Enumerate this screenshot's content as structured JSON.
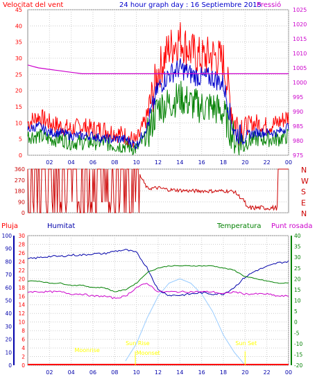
{
  "header": {
    "wind_label": "Velocitat del vent",
    "title": "24 hour graph day : 16 Septiembre 2015",
    "pressure_label": "Pressió"
  },
  "middle": {
    "labels": [
      "Pluja",
      "Humitat",
      "Temperatura",
      "Punt rosada"
    ]
  },
  "colors": {
    "wind": "#ff0000",
    "wind_avg": "#0000cc",
    "wind_min": "#008000",
    "pressure": "#cc00cc",
    "direction": "#cc0000",
    "humidity": "#0000aa",
    "temperature": "#008000",
    "dewpoint": "#cc00cc",
    "solar": "#99ccff",
    "astro": "#ffff00",
    "rain": "#ff0000"
  },
  "chart_data": [
    {
      "type": "line",
      "name": "wind",
      "x_ticks": [
        "02",
        "04",
        "06",
        "08",
        "10",
        "12",
        "14",
        "16",
        "18",
        "20",
        "22",
        "00"
      ],
      "ylim": [
        0,
        45
      ],
      "y_ticks": [
        "0",
        "5",
        "10",
        "15",
        "20",
        "25",
        "30",
        "35",
        "40",
        "45"
      ],
      "y2lim": [
        975,
        1025
      ],
      "y2_ticks": [
        "975",
        "980",
        "985",
        "990",
        "995",
        "1000",
        "1005",
        "1010",
        "1015",
        "1020",
        "1025"
      ],
      "x": [
        0,
        1,
        2,
        3,
        4,
        5,
        6,
        7,
        8,
        9,
        10,
        11,
        12,
        13,
        14,
        15,
        16,
        17,
        18,
        19,
        20,
        21,
        22,
        23,
        24
      ],
      "series": [
        {
          "key": "gust",
          "values": [
            10,
            12,
            10,
            9,
            8,
            9,
            8,
            8,
            7,
            6,
            4,
            12,
            26,
            33,
            36,
            32,
            30,
            31,
            29,
            10,
            9,
            10,
            9,
            10,
            12
          ]
        },
        {
          "key": "avg",
          "values": [
            8,
            9,
            7,
            7,
            6,
            6,
            6,
            5,
            5,
            5,
            3,
            9,
            21,
            25,
            27,
            25,
            24,
            24,
            22,
            7,
            6,
            7,
            7,
            7,
            9
          ]
        },
        {
          "key": "min",
          "values": [
            6,
            6,
            5,
            5,
            4,
            4,
            4,
            4,
            3,
            3,
            2,
            6,
            15,
            16,
            18,
            16,
            15,
            15,
            13,
            5,
            4,
            5,
            5,
            5,
            6
          ]
        },
        {
          "key": "pressure",
          "values": [
            1006,
            1005,
            1004.5,
            1004,
            1003.5,
            1003,
            1003,
            1003,
            1003,
            1003,
            1003,
            1003,
            1003,
            1003,
            1003,
            1003,
            1003,
            1003,
            1003,
            1003,
            1003,
            1003,
            1003,
            1003,
            1003
          ]
        }
      ]
    },
    {
      "type": "line",
      "name": "wind_direction",
      "y_ticks": [
        "360",
        "270",
        "180",
        "90",
        "0"
      ],
      "y2_ticks": [
        "N",
        "W",
        "S",
        "E",
        "N"
      ],
      "ylim": [
        0,
        360
      ],
      "x": [
        0,
        1,
        2,
        3,
        4,
        5,
        6,
        7,
        8,
        9,
        10,
        11,
        12,
        13,
        14,
        15,
        16,
        17,
        18,
        19,
        20,
        21,
        22,
        23,
        24
      ],
      "values": [
        90,
        360,
        0,
        90,
        360,
        0,
        360,
        90,
        360,
        0,
        360,
        200,
        205,
        190,
        185,
        180,
        180,
        178,
        180,
        175,
        90,
        20,
        20,
        360,
        360
      ]
    },
    {
      "type": "line",
      "name": "humidity_temperature",
      "x_ticks": [
        "02",
        "04",
        "06",
        "08",
        "10",
        "12",
        "14",
        "16",
        "18",
        "20",
        "22",
        "00"
      ],
      "humidity_ticks": [
        "0",
        "10",
        "20",
        "30",
        "40",
        "50",
        "60",
        "70",
        "80",
        "90",
        "100"
      ],
      "rain_ticks": [
        "0",
        "2",
        "4",
        "6",
        "8",
        "10",
        "12",
        "14",
        "16",
        "18",
        "20",
        "22",
        "24",
        "26",
        "28",
        "30"
      ],
      "temp_ticks": [
        "-20",
        "-15",
        "-10",
        "-5",
        "0",
        "5",
        "10",
        "15",
        "20",
        "25",
        "30",
        "35",
        "40"
      ],
      "humidity_range": [
        0,
        100
      ],
      "rain_range": [
        0,
        30
      ],
      "temp_range": [
        -20,
        40
      ],
      "x": [
        0,
        1,
        2,
        3,
        4,
        5,
        6,
        7,
        8,
        9,
        10,
        11,
        12,
        13,
        14,
        15,
        16,
        17,
        18,
        19,
        20,
        21,
        22,
        23,
        24
      ],
      "series": [
        {
          "key": "humidity",
          "values": [
            82,
            83,
            84,
            84,
            85,
            85,
            86,
            86,
            88,
            89,
            87,
            75,
            58,
            54,
            54,
            55,
            56,
            55,
            55,
            60,
            68,
            73,
            76,
            79,
            80
          ]
        },
        {
          "key": "temperature",
          "values": [
            19,
            19,
            18,
            18,
            17,
            17,
            16,
            16,
            14,
            15,
            18,
            23,
            25,
            26,
            26,
            26,
            26,
            26,
            25,
            24,
            21,
            20,
            19,
            18,
            18
          ]
        },
        {
          "key": "dewpoint",
          "values": [
            14,
            14,
            14,
            14,
            13,
            13,
            12,
            12,
            11,
            12,
            16,
            18,
            14,
            14,
            14,
            14,
            14,
            14,
            13,
            14,
            13,
            13,
            13,
            12,
            12
          ]
        },
        {
          "key": "solar",
          "values": [
            0,
            0,
            0,
            0,
            0,
            0,
            0,
            0,
            0,
            2,
            10,
            22,
            32,
            38,
            40,
            38,
            33,
            25,
            14,
            6,
            0,
            0,
            0,
            0,
            0
          ]
        },
        {
          "key": "rain",
          "values": [
            0,
            0,
            0,
            0,
            0,
            0,
            0,
            0,
            0,
            0,
            0,
            0,
            0,
            0,
            0,
            0,
            0,
            0,
            0,
            0,
            0,
            0,
            0,
            0,
            0
          ]
        }
      ],
      "annotations": [
        "Moonrise",
        "Sun Rise",
        "Moonset",
        "Sun Set"
      ]
    }
  ]
}
